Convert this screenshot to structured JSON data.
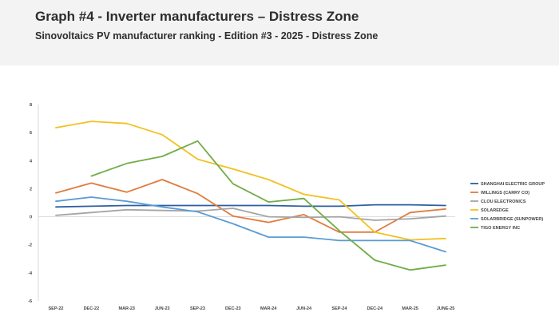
{
  "header": {
    "title": "Graph #4 - Inverter manufacturers – Distress Zone",
    "subtitle": "Sinovoltaics PV manufacturer ranking - Edition #3 - 2025 - Distress Zone"
  },
  "chart_data": {
    "type": "line",
    "title": "",
    "xlabel": "",
    "ylabel": "",
    "ylim": [
      -6,
      8
    ],
    "yticks": [
      8,
      6,
      4,
      2,
      0,
      -2,
      -4,
      -6
    ],
    "grid": false,
    "legend": "right",
    "categories": [
      "SEP-22",
      "DEC-22",
      "MAR-23",
      "JUN-23",
      "SEP-23",
      "DEC-23",
      "MAR-24",
      "JUN-24",
      "SEP-24",
      "DEC-24",
      "MAR-25",
      "JUNE-25"
    ],
    "series": [
      {
        "name": "SHANGHAI ELECTRIC GROUP",
        "color": "#2e5f9e",
        "values": [
          0.7,
          0.75,
          0.8,
          0.8,
          0.8,
          0.8,
          0.8,
          0.75,
          0.75,
          0.85,
          0.85,
          0.8
        ]
      },
      {
        "name": "WILLINGS (CARRY CO)",
        "color": "#e07b3c",
        "values": [
          1.7,
          2.4,
          1.75,
          2.65,
          1.65,
          0.05,
          -0.4,
          0.15,
          -1.1,
          -1.1,
          0.3,
          0.55
        ]
      },
      {
        "name": "CLOU ELECTRONICS",
        "color": "#a5a5a5",
        "values": [
          0.1,
          0.3,
          0.5,
          0.45,
          0.4,
          0.6,
          0.0,
          -0.05,
          0.0,
          -0.25,
          -0.15,
          0.05
        ]
      },
      {
        "name": "SOLAREDGE",
        "color": "#f2c121",
        "values": [
          6.35,
          6.8,
          6.65,
          5.85,
          4.1,
          3.4,
          2.65,
          1.6,
          1.2,
          -1.1,
          -1.65,
          -1.55
        ]
      },
      {
        "name": "SOLARBRIDGE (SUNPOWER)",
        "color": "#5b9bd5",
        "values": [
          1.1,
          1.4,
          1.1,
          0.7,
          0.35,
          -0.5,
          -1.45,
          -1.45,
          -1.7,
          -1.7,
          -1.7,
          -2.5
        ]
      },
      {
        "name": "TIGO ENERGY INC",
        "color": "#70ad47",
        "values": [
          null,
          2.9,
          3.8,
          4.3,
          5.4,
          2.35,
          1.05,
          1.3,
          -1.0,
          -3.1,
          -3.8,
          -3.45
        ]
      }
    ]
  }
}
